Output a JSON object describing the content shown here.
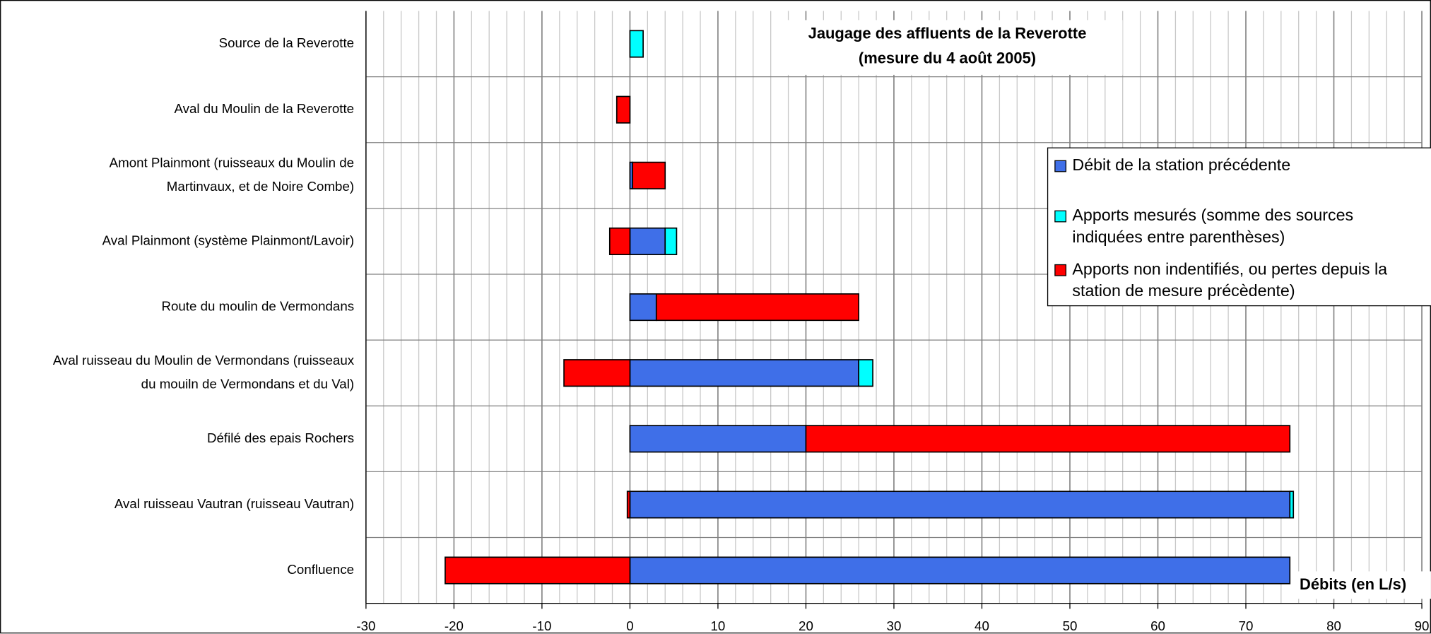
{
  "chart_data": {
    "type": "bar",
    "orientation": "horizontal",
    "stacked": true,
    "title": "Jaugage des affluents de la Reverotte\n(mesure du 4 août 2005)",
    "xlabel": "Débits (en L/s)",
    "categories": [
      "Source de la Reverotte",
      "Aval du Moulin de la Reverotte",
      "Amont Plainmont (ruisseaux du Moulin de\nMartinvaux, et de Noire Combe)",
      "Aval Plainmont (système Plainmont/Lavoir)",
      "Route du moulin de Vermondans",
      "Aval ruisseau du Moulin de Vermondans (ruisseaux\ndu mouiln de Vermondans et du Val)",
      "Défilé des epais Rochers",
      "Aval ruisseau Vautran (ruisseau Vautran)",
      "Confluence"
    ],
    "series": [
      {
        "name": "Débit de la station précédente",
        "color": "#3f6fe8",
        "values": [
          0,
          0,
          0.3,
          4,
          3,
          26,
          20,
          75,
          75
        ]
      },
      {
        "name": "Apports mesurés (somme des sources\nindiquées entre parenthèses)",
        "color": "#00ffff",
        "values": [
          1.5,
          0,
          0,
          1.3,
          0,
          1.6,
          0,
          0.4,
          0
        ]
      },
      {
        "name": "Apports non indentifiés, ou pertes depuis la\nstation de mesure précèdente)",
        "color": "#ff0000",
        "values": [
          0,
          -1.5,
          3.7,
          -2.3,
          23,
          -7.5,
          55,
          -0.3,
          -21
        ]
      }
    ],
    "xlim": [
      -30,
      90
    ],
    "xticks": [
      -30,
      -20,
      -10,
      0,
      10,
      20,
      30,
      40,
      50,
      60,
      70,
      80,
      90
    ],
    "xminor_step": 2,
    "grid": true,
    "legend": "right"
  }
}
